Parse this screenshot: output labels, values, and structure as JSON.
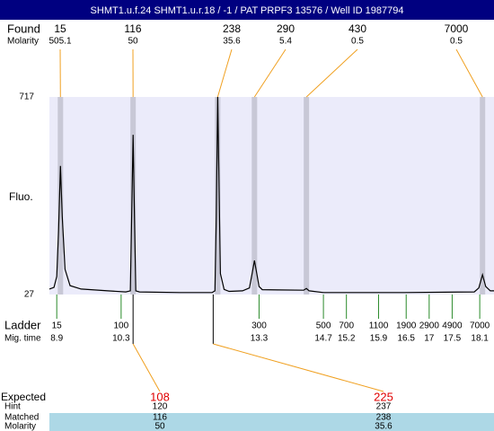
{
  "chart_data": {
    "type": "line",
    "title": "SHMT1.u.f.24  SHMT1.u.r.18 / -1 / PAT PRPF3 13576 / Well ID 1987794",
    "y_label": "Fluo.",
    "ylim": [
      27,
      717
    ],
    "yticks": [
      27,
      717
    ],
    "xlim": [
      8.74,
      18.41
    ],
    "series": [
      {
        "color": "#000000",
        "x": [
          8.74,
          8.84,
          8.9,
          8.94,
          8.98,
          9.02,
          9.08,
          9.19,
          9.43,
          10.01,
          10.4,
          10.5,
          10.53,
          10.56,
          10.59,
          10.62,
          10.7,
          11.58,
          12.28,
          12.34,
          12.37,
          12.4,
          12.43,
          12.46,
          12.54,
          12.65,
          12.94,
          13.09,
          13.15,
          13.2,
          13.25,
          13.3,
          13.37,
          13.72,
          14.27,
          14.33,
          14.39,
          14.7,
          16.46,
          17.98,
          18.08,
          18.16,
          18.23,
          18.33,
          18.41
        ],
        "values": [
          46,
          52,
          90,
          250,
          476,
          300,
          115,
          58,
          46,
          40,
          36,
          40,
          300,
          585,
          300,
          40,
          36,
          34,
          34,
          40,
          300,
          717,
          400,
          100,
          45,
          38,
          40,
          50,
          100,
          146,
          100,
          55,
          44,
          43,
          42,
          48,
          40,
          34,
          34,
          36,
          50,
          96,
          55,
          40,
          40
        ]
      }
    ],
    "found": {
      "label": "Found",
      "molarity_label": "Molarity",
      "sizes": [
        15,
        116,
        238,
        290,
        430,
        7000
      ],
      "molarity": [
        505.1,
        50,
        35.6,
        5.4,
        0.5,
        0.5
      ],
      "times": [
        8.98,
        10.56,
        12.4,
        13.2,
        14.33,
        18.16
      ]
    },
    "ladder": {
      "label": "Ladder",
      "time_label": "Mig. time",
      "sizes": [
        15,
        100,
        300,
        500,
        700,
        1100,
        1900,
        2900,
        4900,
        7000
      ],
      "times": [
        8.9,
        10.3,
        13.3,
        14.7,
        15.2,
        15.9,
        16.5,
        17,
        17.5,
        18.1
      ]
    },
    "table": {
      "labels": [
        "Expected",
        "Hint",
        "Matched",
        "Molarity"
      ],
      "expected": [
        108,
        225
      ],
      "hint": [
        120,
        237
      ],
      "matched": [
        116,
        238
      ],
      "molarity": [
        50,
        35.6
      ]
    }
  }
}
